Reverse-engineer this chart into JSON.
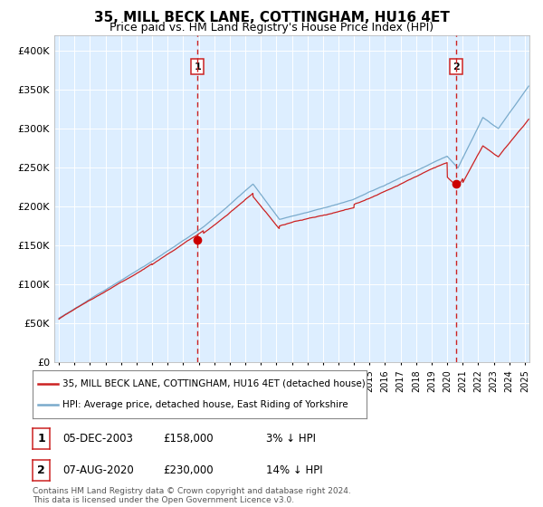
{
  "title": "35, MILL BECK LANE, COTTINGHAM, HU16 4ET",
  "subtitle": "Price paid vs. HM Land Registry's House Price Index (HPI)",
  "title_fontsize": 11,
  "subtitle_fontsize": 9,
  "ylim": [
    0,
    420000
  ],
  "yticks": [
    0,
    50000,
    100000,
    150000,
    200000,
    250000,
    300000,
    350000,
    400000
  ],
  "ytick_labels": [
    "£0",
    "£50K",
    "£100K",
    "£150K",
    "£200K",
    "£250K",
    "£300K",
    "£350K",
    "£400K"
  ],
  "hpi_color": "#7aabcc",
  "price_color": "#cc2222",
  "purchase_color": "#cc0000",
  "vline_color": "#cc2222",
  "bg_color": "#ddeeff",
  "grid_color": "#ffffff",
  "purchase1_year": 2003.92,
  "purchase1_price": 158000,
  "purchase2_year": 2020.58,
  "purchase2_price": 230000,
  "legend_entries": [
    "35, MILL BECK LANE, COTTINGHAM, HU16 4ET (detached house)",
    "HPI: Average price, detached house, East Riding of Yorkshire"
  ],
  "table_entries": [
    {
      "num": "1",
      "date": "05-DEC-2003",
      "price": "£158,000",
      "note": "3% ↓ HPI"
    },
    {
      "num": "2",
      "date": "07-AUG-2020",
      "price": "£230,000",
      "note": "14% ↓ HPI"
    }
  ],
  "footnote": "Contains HM Land Registry data © Crown copyright and database right 2024.\nThis data is licensed under the Open Government Licence v3.0.",
  "xtick_years": [
    1995,
    1996,
    1997,
    1998,
    1999,
    2000,
    2001,
    2002,
    2003,
    2004,
    2005,
    2006,
    2007,
    2008,
    2009,
    2010,
    2011,
    2012,
    2013,
    2014,
    2015,
    2016,
    2017,
    2018,
    2019,
    2020,
    2021,
    2022,
    2023,
    2024,
    2025
  ],
  "start_year": 1994.7,
  "end_year": 2025.3
}
